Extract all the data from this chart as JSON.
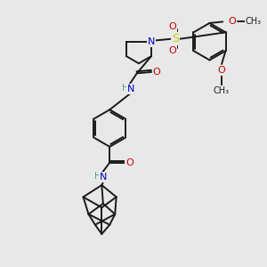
{
  "bg_color": "#e8e8e8",
  "atom_colors": {
    "C": "#1a1a1a",
    "N": "#0000cc",
    "O": "#cc0000",
    "S": "#cccc00",
    "H": "#4a9a9a"
  },
  "lw": 1.4,
  "fs": 8.0,
  "fs_small": 7.0
}
